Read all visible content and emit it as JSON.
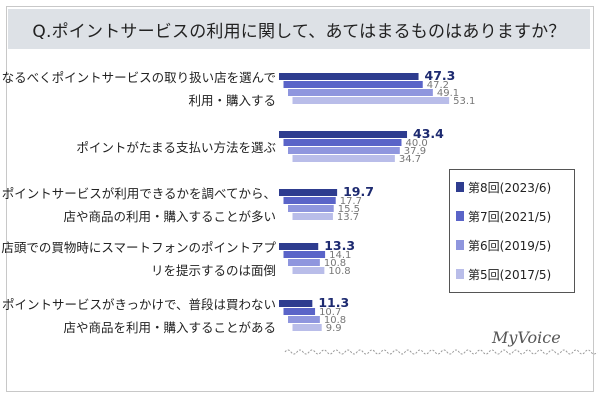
{
  "title": "Q.ポイントサービスの利用に関して、あてはまるものはありますか？",
  "logo": "MyVoice",
  "colors": {
    "series": [
      "#2e3c8f",
      "#5a64c8",
      "#8f96de",
      "#b9bde9"
    ]
  },
  "chart_data": {
    "type": "bar",
    "orientation": "horizontal",
    "categories": [
      [
        "なるべくポイントサービスの取り扱い店を選んで",
        "利用・購入する"
      ],
      [
        "ポイントがたまる支払い方法を選ぶ"
      ],
      [
        "ポイントサービスが利用できるかを調べてから、",
        "店や商品の利用・購入することが多い"
      ],
      [
        "店頭での買物時にスマートフォンのポイントアプ",
        "リを提示するのは面倒"
      ],
      [
        "ポイントサービスがきっかけで、普段は買わない",
        "店や商品を利用・購入することがある"
      ]
    ],
    "series": [
      {
        "name": "第8回(2023/6)",
        "values": [
          47.3,
          43.4,
          19.7,
          13.3,
          11.3
        ]
      },
      {
        "name": "第7回(2021/5)",
        "values": [
          47.2,
          40.0,
          17.7,
          14.1,
          10.7
        ]
      },
      {
        "name": "第6回(2019/5)",
        "values": [
          49.1,
          37.9,
          15.5,
          10.8,
          10.8
        ]
      },
      {
        "name": "第5回(2017/5)",
        "values": [
          53.1,
          34.7,
          13.7,
          10.8,
          9.9
        ]
      }
    ],
    "value_labels": [
      [
        "47.3",
        "47.2",
        "49.1",
        "53.1"
      ],
      [
        "43.4",
        "40.0",
        "37.9",
        "34.7"
      ],
      [
        "19.7",
        "17.7",
        "15.5",
        "13.7"
      ],
      [
        "13.3",
        "14.1",
        "10.8",
        "10.8"
      ],
      [
        "11.3",
        "10.7",
        "10.8",
        "9.9"
      ]
    ],
    "xlim": [
      0,
      100
    ],
    "grid": false,
    "legend_position": "right"
  }
}
